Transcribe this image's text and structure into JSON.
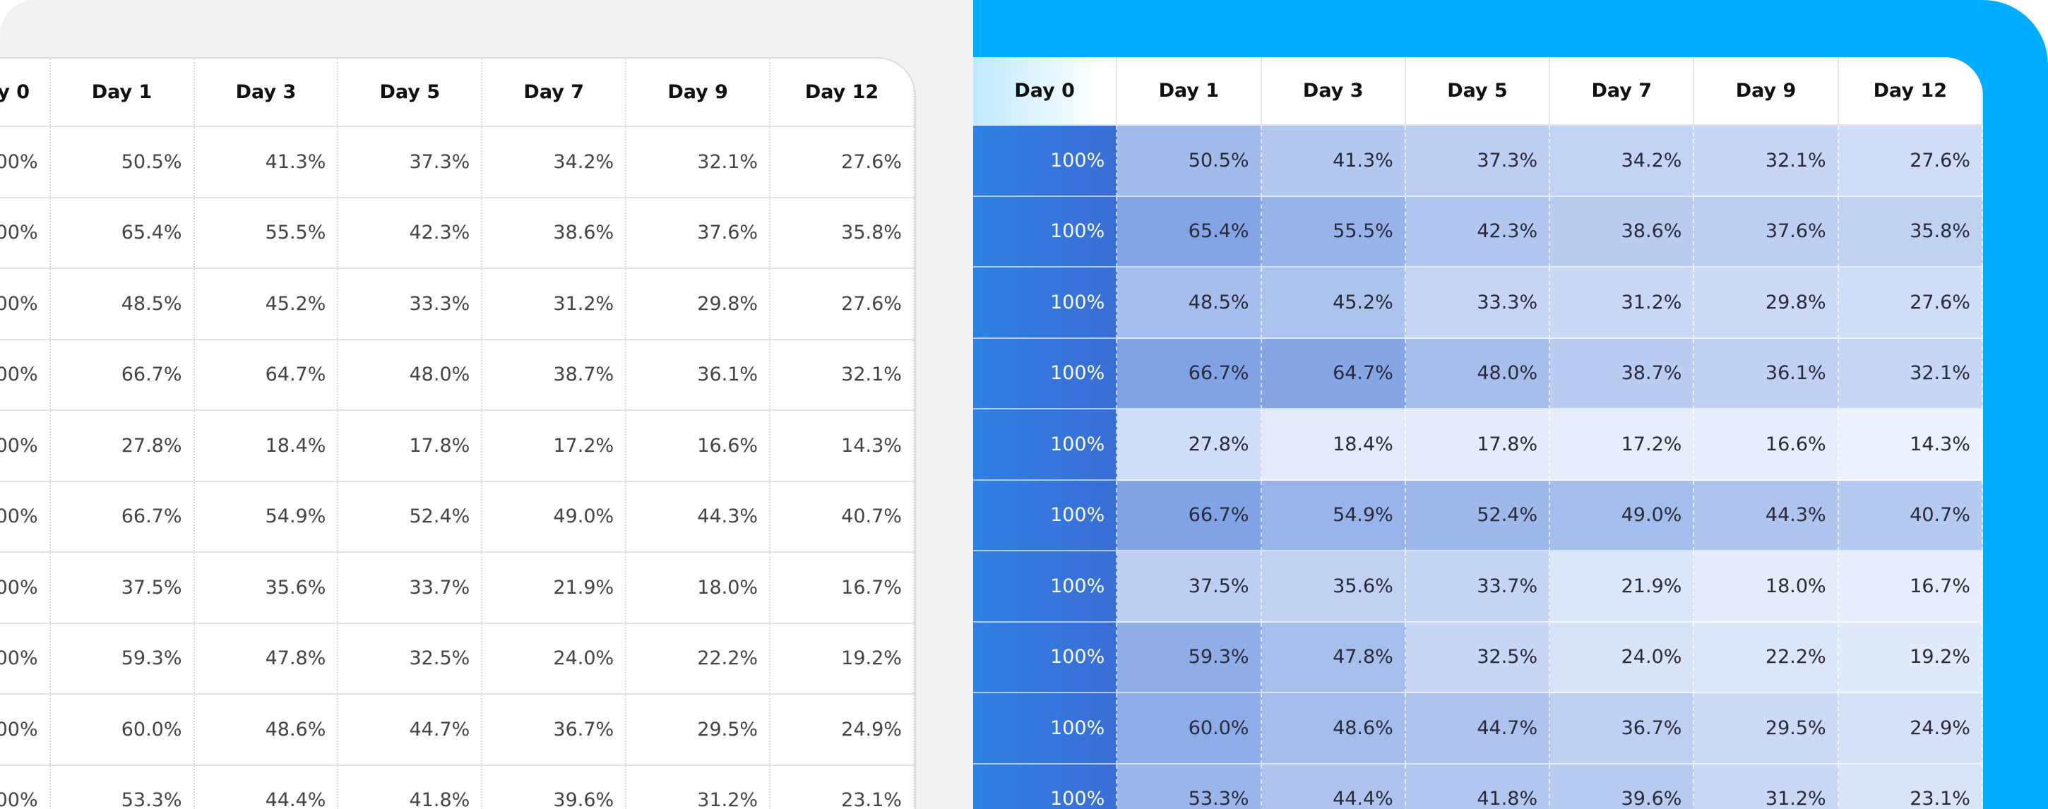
{
  "table": {
    "columns": [
      "Day 0",
      "Day 1",
      "Day 3",
      "Day 5",
      "Day 7",
      "Day 9",
      "Day 12"
    ],
    "rows": [
      [
        "100%",
        "50.5%",
        "41.3%",
        "37.3%",
        "34.2%",
        "32.1%",
        "27.6%"
      ],
      [
        "100%",
        "65.4%",
        "55.5%",
        "42.3%",
        "38.6%",
        "37.6%",
        "35.8%"
      ],
      [
        "100%",
        "48.5%",
        "45.2%",
        "33.3%",
        "31.2%",
        "29.8%",
        "27.6%"
      ],
      [
        "100%",
        "66.7%",
        "64.7%",
        "48.0%",
        "38.7%",
        "36.1%",
        "32.1%"
      ],
      [
        "100%",
        "27.8%",
        "18.4%",
        "17.8%",
        "17.2%",
        "16.6%",
        "14.3%"
      ],
      [
        "100%",
        "66.7%",
        "54.9%",
        "52.4%",
        "49.0%",
        "44.3%",
        "40.7%"
      ],
      [
        "100%",
        "37.5%",
        "35.6%",
        "33.7%",
        "21.9%",
        "18.0%",
        "16.7%"
      ],
      [
        "100%",
        "59.3%",
        "47.8%",
        "32.5%",
        "24.0%",
        "22.2%",
        "19.2%"
      ],
      [
        "100%",
        "60.0%",
        "48.6%",
        "44.7%",
        "36.7%",
        "29.5%",
        "24.9%"
      ],
      [
        "100%",
        "53.3%",
        "44.4%",
        "41.8%",
        "39.6%",
        "31.2%",
        "23.1%"
      ]
    ]
  }
}
